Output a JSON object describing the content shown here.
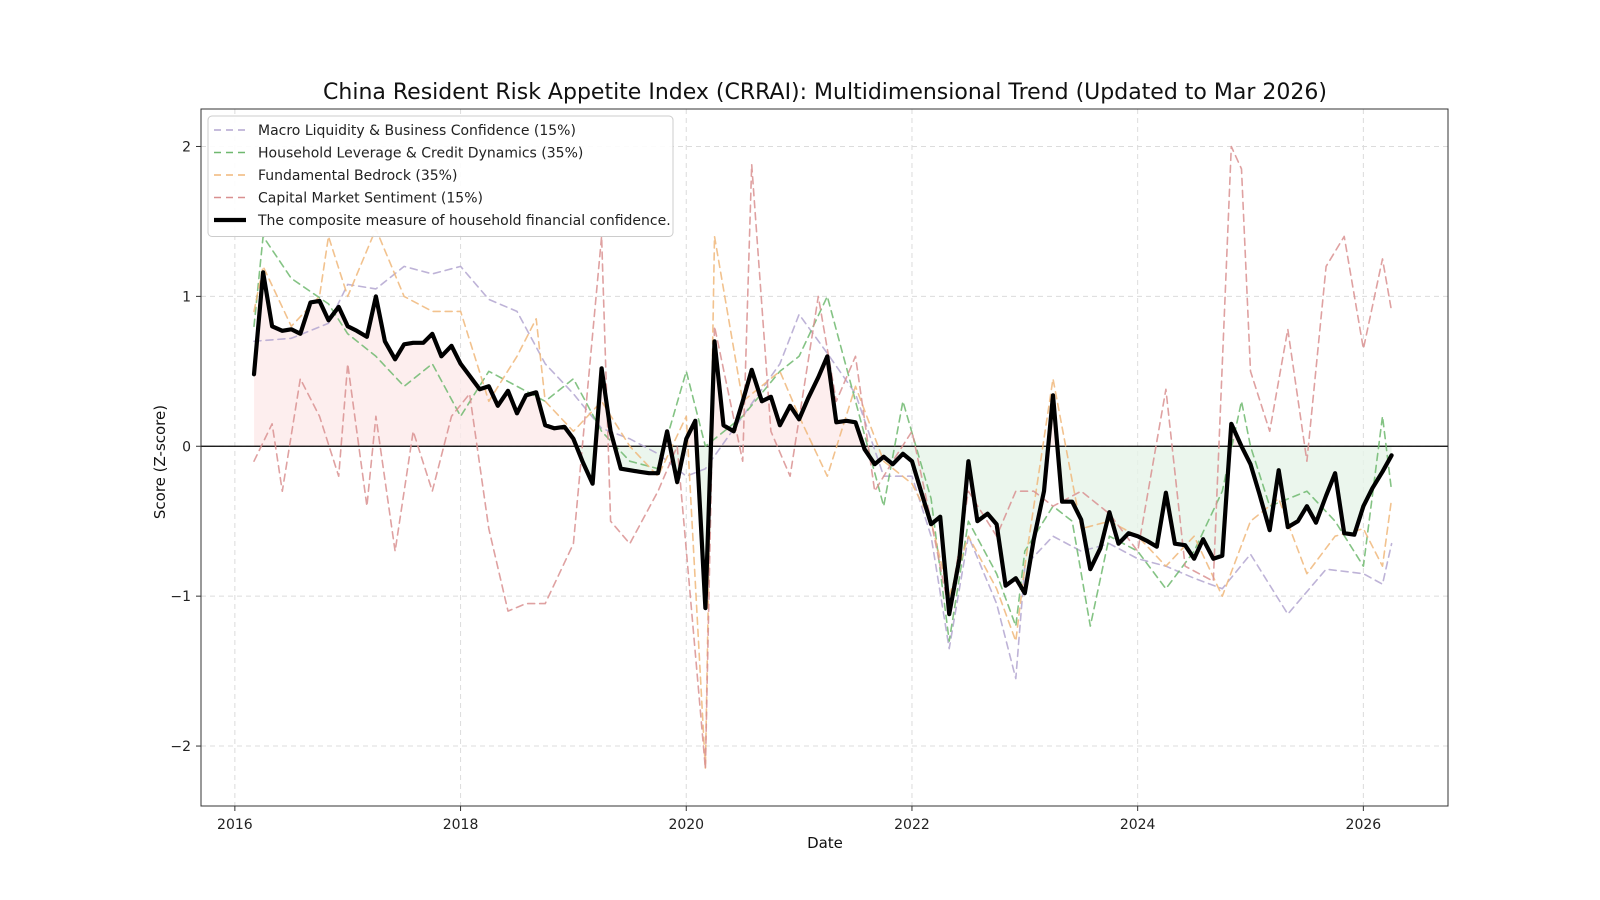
{
  "chart_data": {
    "type": "line",
    "title": "China Resident Risk Appetite Index (CRRAI): Multidimensional Trend (Updated to Mar 2026)",
    "xlabel": "Date",
    "ylabel": "Score (Z-score)",
    "xlim": [
      2015.7,
      2026.75
    ],
    "ylim": [
      -2.4,
      2.25
    ],
    "xticks": [
      2016,
      2018,
      2020,
      2022,
      2024,
      2026
    ],
    "xtick_labels": [
      "2016",
      "2018",
      "2020",
      "2022",
      "2024",
      "2026"
    ],
    "yticks": [
      -2,
      -1,
      0,
      1,
      2
    ],
    "ytick_labels": [
      "−2",
      "−1",
      "0",
      "1",
      "2"
    ],
    "grid": true,
    "legend_position": "top-left",
    "zero_line": true,
    "fill_positive_color": "#fdeaea",
    "fill_negative_color": "#e6f4e8",
    "series": [
      {
        "name": "Macro Liquidity & Business Confidence (15%)",
        "color": "#b3a6d0",
        "style": "dashed",
        "x": [
          2016.17,
          2016.5,
          2016.83,
          2017.0,
          2017.25,
          2017.5,
          2017.75,
          2018.0,
          2018.25,
          2018.5,
          2018.75,
          2019.0,
          2019.25,
          2019.5,
          2019.75,
          2020.0,
          2020.17,
          2020.5,
          2020.83,
          2021.0,
          2021.25,
          2021.5,
          2021.75,
          2022.0,
          2022.17,
          2022.33,
          2022.5,
          2022.75,
          2022.92,
          2023.0,
          2023.25,
          2023.5,
          2023.75,
          2024.0,
          2024.25,
          2024.5,
          2024.75,
          2025.0,
          2025.33,
          2025.67,
          2026.0,
          2026.17,
          2026.25
        ],
        "y": [
          0.7,
          0.72,
          0.82,
          1.08,
          1.05,
          1.2,
          1.15,
          1.2,
          0.98,
          0.9,
          0.55,
          0.35,
          0.12,
          0.05,
          -0.05,
          -0.2,
          -0.15,
          0.2,
          0.55,
          0.88,
          0.62,
          0.35,
          -0.2,
          -0.2,
          -0.6,
          -1.35,
          -0.6,
          -1.05,
          -1.55,
          -0.8,
          -0.6,
          -0.7,
          -0.65,
          -0.75,
          -0.8,
          -0.88,
          -0.95,
          -0.72,
          -1.12,
          -0.82,
          -0.85,
          -0.92,
          -0.65
        ]
      },
      {
        "name": "Household Leverage & Credit Dynamics (35%)",
        "color": "#6fb86f",
        "style": "dashed",
        "x": [
          2016.17,
          2016.25,
          2016.5,
          2016.83,
          2017.0,
          2017.25,
          2017.5,
          2017.75,
          2018.0,
          2018.25,
          2018.5,
          2018.75,
          2019.0,
          2019.25,
          2019.5,
          2019.75,
          2020.0,
          2020.17,
          2020.5,
          2020.83,
          2021.0,
          2021.25,
          2021.5,
          2021.75,
          2021.92,
          2022.17,
          2022.33,
          2022.5,
          2022.75,
          2022.92,
          2023.0,
          2023.25,
          2023.42,
          2023.58,
          2023.75,
          2024.0,
          2024.25,
          2024.5,
          2024.75,
          2024.92,
          2025.0,
          2025.17,
          2025.5,
          2025.75,
          2026.0,
          2026.17,
          2026.25
        ],
        "y": [
          0.8,
          1.4,
          1.12,
          0.95,
          0.75,
          0.6,
          0.4,
          0.55,
          0.2,
          0.5,
          0.4,
          0.3,
          0.45,
          0.1,
          -0.1,
          -0.15,
          0.5,
          0.0,
          0.2,
          0.5,
          0.6,
          1.0,
          0.3,
          -0.4,
          0.3,
          -0.35,
          -1.3,
          -0.5,
          -0.85,
          -1.2,
          -0.7,
          -0.4,
          -0.5,
          -1.2,
          -0.6,
          -0.7,
          -0.95,
          -0.7,
          -0.3,
          0.3,
          0.0,
          -0.4,
          -0.3,
          -0.5,
          -0.8,
          0.2,
          -0.3
        ]
      },
      {
        "name": "Fundamental Bedrock (35%)",
        "color": "#f0b77a",
        "style": "dashed",
        "x": [
          2016.17,
          2016.25,
          2016.5,
          2016.75,
          2016.83,
          2017.0,
          2017.25,
          2017.5,
          2017.75,
          2018.0,
          2018.25,
          2018.5,
          2018.67,
          2018.75,
          2019.0,
          2019.25,
          2019.5,
          2019.75,
          2020.0,
          2020.17,
          2020.25,
          2020.5,
          2020.83,
          2021.0,
          2021.25,
          2021.5,
          2021.75,
          2022.0,
          2022.17,
          2022.33,
          2022.5,
          2022.75,
          2022.92,
          2023.0,
          2023.25,
          2023.5,
          2023.75,
          2024.0,
          2024.25,
          2024.5,
          2024.75,
          2025.0,
          2025.25,
          2025.5,
          2025.75,
          2026.0,
          2026.17,
          2026.25
        ],
        "y": [
          0.9,
          1.2,
          0.8,
          1.0,
          1.4,
          1.0,
          1.45,
          1.0,
          0.9,
          0.9,
          0.3,
          0.6,
          0.85,
          0.3,
          0.1,
          0.3,
          0.0,
          -0.2,
          0.2,
          -2.15,
          1.4,
          0.3,
          0.5,
          0.2,
          -0.2,
          0.4,
          -0.1,
          -0.25,
          -0.5,
          -1.0,
          -0.6,
          -0.95,
          -1.3,
          -0.8,
          0.45,
          -0.55,
          -0.5,
          -0.6,
          -0.8,
          -0.6,
          -1.0,
          -0.5,
          -0.35,
          -0.85,
          -0.6,
          -0.55,
          -0.8,
          -0.35
        ]
      },
      {
        "name": "Capital Market Sentiment (15%)",
        "color": "#d99090",
        "style": "dashed",
        "x": [
          2016.17,
          2016.33,
          2016.42,
          2016.58,
          2016.75,
          2016.92,
          2017.0,
          2017.17,
          2017.25,
          2017.42,
          2017.58,
          2017.75,
          2017.92,
          2018.08,
          2018.25,
          2018.42,
          2018.58,
          2018.75,
          2019.0,
          2019.25,
          2019.33,
          2019.5,
          2019.75,
          2019.92,
          2020.17,
          2020.25,
          2020.5,
          2020.58,
          2020.75,
          2020.92,
          2021.17,
          2021.33,
          2021.5,
          2021.67,
          2021.83,
          2022.0,
          2022.17,
          2022.33,
          2022.5,
          2022.75,
          2022.92,
          2023.08,
          2023.25,
          2023.5,
          2023.75,
          2024.0,
          2024.25,
          2024.42,
          2024.67,
          2024.83,
          2024.92,
          2025.0,
          2025.17,
          2025.33,
          2025.5,
          2025.67,
          2025.83,
          2026.0,
          2026.17,
          2026.25
        ],
        "y": [
          -0.1,
          0.15,
          -0.3,
          0.45,
          0.2,
          -0.2,
          0.55,
          -0.4,
          0.2,
          -0.7,
          0.1,
          -0.3,
          0.2,
          0.35,
          -0.55,
          -1.1,
          -1.05,
          -1.05,
          -0.65,
          1.4,
          -0.5,
          -0.65,
          -0.3,
          0.0,
          -2.15,
          0.8,
          -0.1,
          1.88,
          0.1,
          -0.2,
          1.0,
          0.3,
          0.6,
          -0.3,
          -0.1,
          0.1,
          -0.5,
          -1.1,
          -0.3,
          -0.6,
          -0.3,
          -0.3,
          -0.4,
          -0.3,
          -0.45,
          -0.7,
          0.38,
          -0.8,
          -0.9,
          2.0,
          1.85,
          0.5,
          0.1,
          0.78,
          -0.1,
          1.2,
          1.4,
          0.65,
          1.25,
          0.9
        ]
      },
      {
        "name": "The composite measure of household financial confidence.",
        "color": "#000000",
        "style": "solid",
        "x": [
          2016.17,
          2016.25,
          2016.33,
          2016.42,
          2016.5,
          2016.58,
          2016.67,
          2016.75,
          2016.83,
          2016.92,
          2017.0,
          2017.08,
          2017.17,
          2017.25,
          2017.33,
          2017.42,
          2017.5,
          2017.58,
          2017.67,
          2017.75,
          2017.83,
          2017.92,
          2018.0,
          2018.08,
          2018.17,
          2018.25,
          2018.33,
          2018.42,
          2018.5,
          2018.58,
          2018.67,
          2018.75,
          2018.83,
          2018.92,
          2019.0,
          2019.08,
          2019.17,
          2019.25,
          2019.33,
          2019.42,
          2019.5,
          2019.58,
          2019.67,
          2019.75,
          2019.83,
          2019.92,
          2020.0,
          2020.08,
          2020.17,
          2020.25,
          2020.33,
          2020.42,
          2020.5,
          2020.58,
          2020.67,
          2020.75,
          2020.83,
          2020.92,
          2021.0,
          2021.08,
          2021.17,
          2021.25,
          2021.33,
          2021.42,
          2021.5,
          2021.58,
          2021.67,
          2021.75,
          2021.83,
          2021.92,
          2022.0,
          2022.08,
          2022.17,
          2022.25,
          2022.33,
          2022.42,
          2022.5,
          2022.58,
          2022.67,
          2022.75,
          2022.83,
          2022.92,
          2023.0,
          2023.08,
          2023.17,
          2023.25,
          2023.33,
          2023.42,
          2023.5,
          2023.58,
          2023.67,
          2023.75,
          2023.83,
          2023.92,
          2024.0,
          2024.08,
          2024.17,
          2024.25,
          2024.33,
          2024.42,
          2024.5,
          2024.58,
          2024.67,
          2024.75,
          2024.83,
          2024.92,
          2025.0,
          2025.08,
          2025.17,
          2025.25,
          2025.33,
          2025.42,
          2025.5,
          2025.58,
          2025.67,
          2025.75,
          2025.83,
          2025.92,
          2026.0,
          2026.08,
          2026.17,
          2026.25
        ],
        "y": [
          0.48,
          1.16,
          0.8,
          0.77,
          0.78,
          0.75,
          0.96,
          0.97,
          0.84,
          0.93,
          0.8,
          0.77,
          0.73,
          1.0,
          0.7,
          0.58,
          0.68,
          0.69,
          0.69,
          0.75,
          0.6,
          0.67,
          0.55,
          0.47,
          0.38,
          0.4,
          0.27,
          0.37,
          0.22,
          0.34,
          0.36,
          0.14,
          0.12,
          0.13,
          0.05,
          -0.1,
          -0.25,
          0.52,
          0.1,
          -0.15,
          -0.16,
          -0.17,
          -0.18,
          -0.18,
          0.1,
          -0.24,
          0.05,
          0.17,
          -1.08,
          0.7,
          0.14,
          0.1,
          0.3,
          0.51,
          0.3,
          0.33,
          0.14,
          0.27,
          0.18,
          0.32,
          0.46,
          0.6,
          0.16,
          0.17,
          0.16,
          -0.02,
          -0.12,
          -0.07,
          -0.12,
          -0.05,
          -0.1,
          -0.3,
          -0.52,
          -0.47,
          -1.12,
          -0.75,
          -0.1,
          -0.5,
          -0.45,
          -0.52,
          -0.93,
          -0.88,
          -0.98,
          -0.62,
          -0.3,
          0.34,
          -0.37,
          -0.37,
          -0.49,
          -0.82,
          -0.68,
          -0.44,
          -0.65,
          -0.58,
          -0.6,
          -0.63,
          -0.67,
          -0.31,
          -0.65,
          -0.66,
          -0.75,
          -0.62,
          -0.75,
          -0.73,
          0.15,
          0.0,
          -0.12,
          -0.32,
          -0.56,
          -0.16,
          -0.54,
          -0.5,
          -0.4,
          -0.51,
          -0.33,
          -0.18,
          -0.58,
          -0.59,
          -0.4,
          -0.28,
          -0.17,
          -0.06
        ]
      }
    ]
  }
}
